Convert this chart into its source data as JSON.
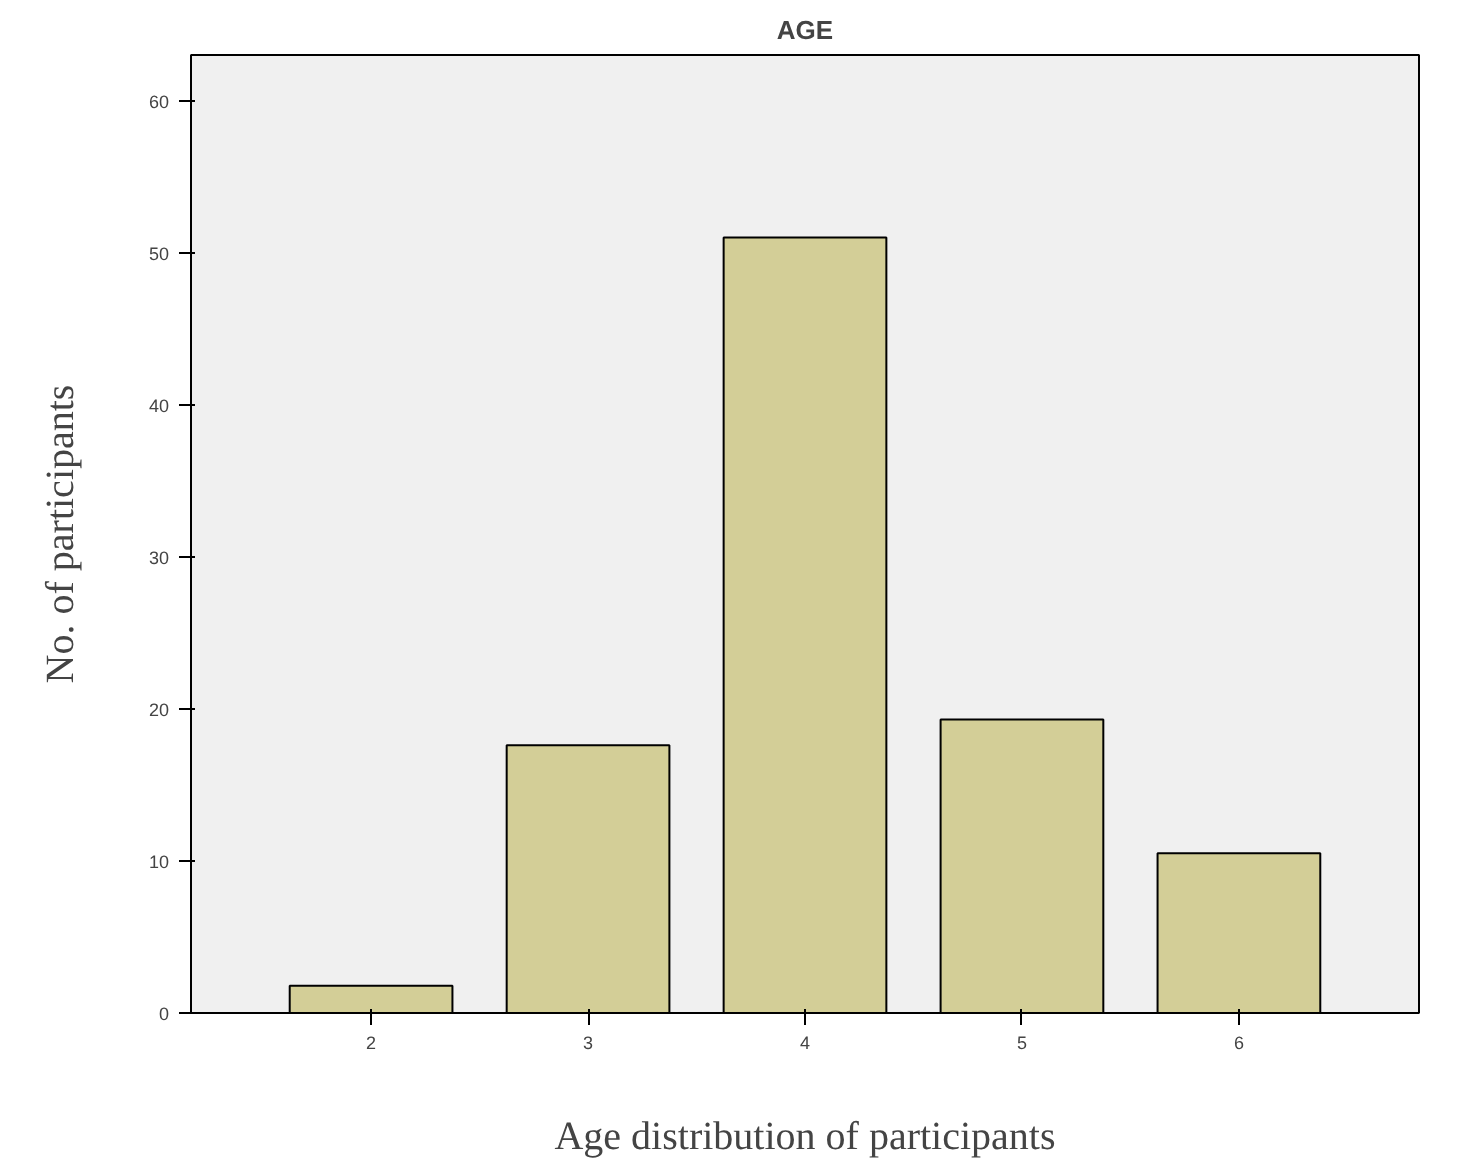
{
  "chart_data": {
    "type": "bar",
    "title": "AGE",
    "xlabel": "Age distribution of participants",
    "ylabel": "No. of participants",
    "categories": [
      "2",
      "3",
      "4",
      "5",
      "6"
    ],
    "values": [
      1.8,
      17.6,
      51.0,
      19.3,
      10.5
    ],
    "color": "#d3ce97",
    "ylim": [
      0,
      63
    ],
    "yticks": [
      0,
      10,
      20,
      30,
      40,
      50,
      60
    ],
    "grid": false
  }
}
